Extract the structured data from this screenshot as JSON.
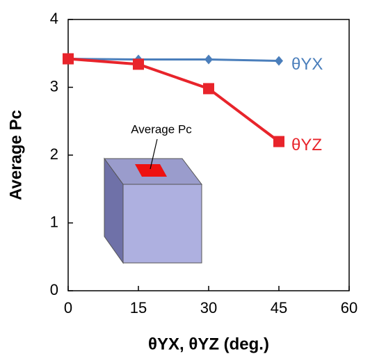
{
  "chart_data": {
    "type": "line",
    "x_label": "θYX, θYZ (deg.)",
    "y_label": "Average Pc",
    "annotation": "Average Pc",
    "x": [
      0,
      15,
      30,
      45
    ],
    "series": [
      {
        "name": "θYX",
        "color": "#4a7ebb",
        "marker": "diamond",
        "values": [
          3.42,
          3.41,
          3.41,
          3.39
        ]
      },
      {
        "name": "θYZ",
        "color": "#e8242b",
        "marker": "square",
        "values": [
          3.42,
          3.34,
          2.98,
          2.2
        ]
      }
    ],
    "xlim": [
      0,
      60
    ],
    "xticks": [
      0,
      15,
      30,
      45,
      60
    ],
    "ylim": [
      0,
      4
    ],
    "yticks": [
      0,
      1,
      2,
      3,
      4
    ]
  }
}
